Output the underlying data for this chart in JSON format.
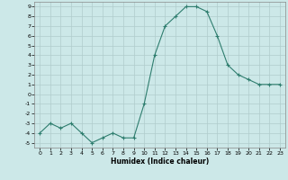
{
  "x": [
    0,
    1,
    2,
    3,
    4,
    5,
    6,
    7,
    8,
    9,
    10,
    11,
    12,
    13,
    14,
    15,
    16,
    17,
    18,
    19,
    20,
    21,
    22,
    23
  ],
  "y": [
    -4,
    -3,
    -3.5,
    -3,
    -4,
    -5,
    -4.5,
    -4,
    -4.5,
    -4.5,
    -1,
    4,
    7,
    8,
    9,
    9,
    8.5,
    6,
    3,
    2,
    1.5,
    1,
    1,
    1
  ],
  "xlabel": "Humidex (Indice chaleur)",
  "xlim": [
    -0.5,
    23.5
  ],
  "ylim": [
    -5.5,
    9.5
  ],
  "yticks": [
    -5,
    -4,
    -3,
    -2,
    -1,
    0,
    1,
    2,
    3,
    4,
    5,
    6,
    7,
    8,
    9
  ],
  "xticks": [
    0,
    1,
    2,
    3,
    4,
    5,
    6,
    7,
    8,
    9,
    10,
    11,
    12,
    13,
    14,
    15,
    16,
    17,
    18,
    19,
    20,
    21,
    22,
    23
  ],
  "line_color": "#2e7d6e",
  "marker": "+",
  "bg_color": "#cce8e8",
  "grid_color": "#b0cccc"
}
